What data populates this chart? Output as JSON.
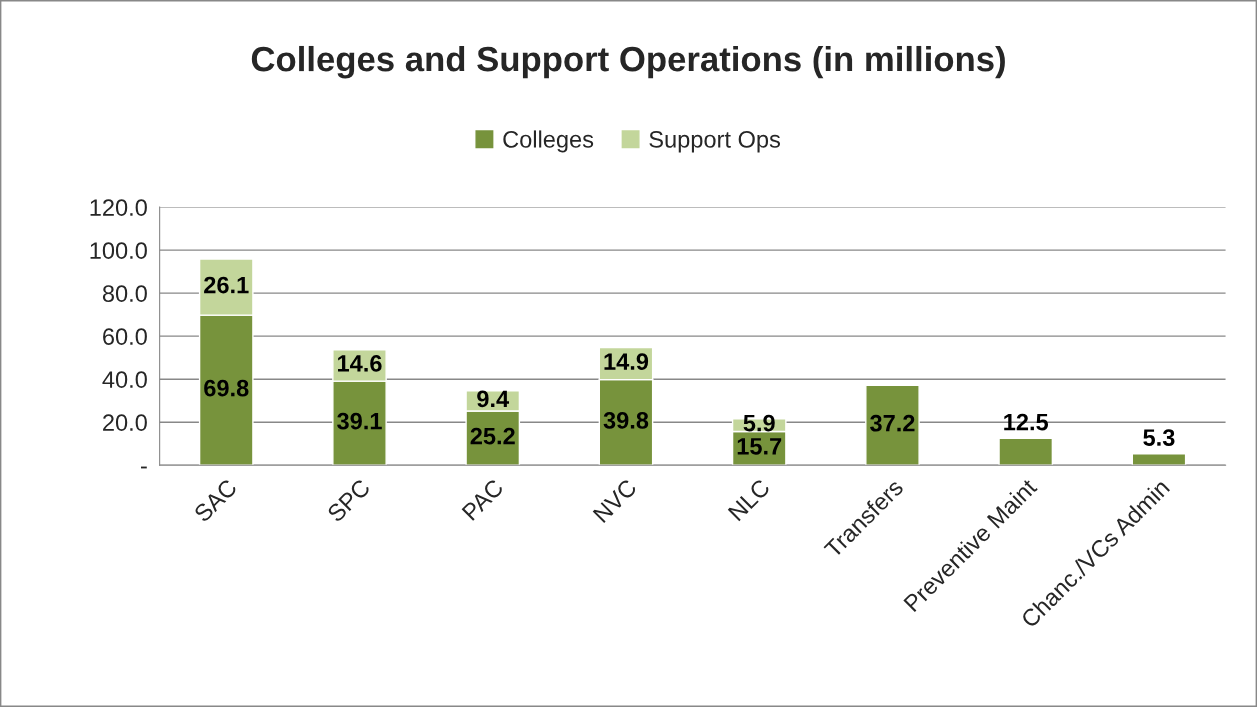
{
  "chart_data": {
    "type": "bar",
    "title": "Colleges and Support Operations (in millions)",
    "categories": [
      "SAC",
      "SPC",
      "PAC",
      "NVC",
      "NLC",
      "Transfers",
      "Preventive Maint",
      "Chanc./VCs Admin"
    ],
    "series": [
      {
        "name": "Colleges",
        "color": "#77933c",
        "values": [
          69.8,
          39.1,
          25.2,
          39.8,
          15.7,
          37.2,
          12.5,
          5.3
        ]
      },
      {
        "name": "Support Ops",
        "color": "#c3d69b",
        "values": [
          26.1,
          14.6,
          9.4,
          14.9,
          5.9,
          null,
          null,
          null
        ]
      }
    ],
    "stacked": true,
    "data_labels": true,
    "ylim": [
      0,
      120
    ],
    "yticks": [
      {
        "value": 0,
        "label": "-"
      },
      {
        "value": 20,
        "label": "20.0"
      },
      {
        "value": 40,
        "label": "40.0"
      },
      {
        "value": 60,
        "label": "60.0"
      },
      {
        "value": 80,
        "label": "80.0"
      },
      {
        "value": 100,
        "label": "100.0"
      },
      {
        "value": 120,
        "label": "120.0"
      }
    ],
    "grid": "y",
    "legend": "top"
  }
}
